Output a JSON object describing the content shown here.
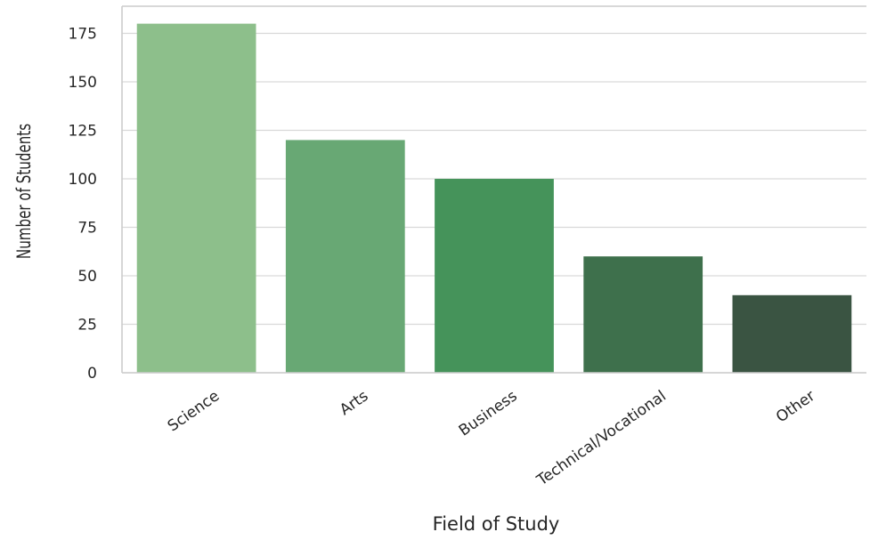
{
  "chart_data": {
    "type": "bar",
    "title": "",
    "xlabel": "Field of Study",
    "ylabel": "Number of Students",
    "categories": [
      "Science",
      "Arts",
      "Business",
      "Technical/Vocational",
      "Other"
    ],
    "values": [
      180,
      120,
      100,
      60,
      40
    ],
    "colors": [
      "#8dbf8b",
      "#68a874",
      "#45935a",
      "#3e704c",
      "#3a5442"
    ],
    "ylim": [
      0,
      189
    ],
    "yticks": [
      0,
      25,
      50,
      75,
      100,
      125,
      150,
      175
    ],
    "grid": true,
    "legend": "none"
  }
}
